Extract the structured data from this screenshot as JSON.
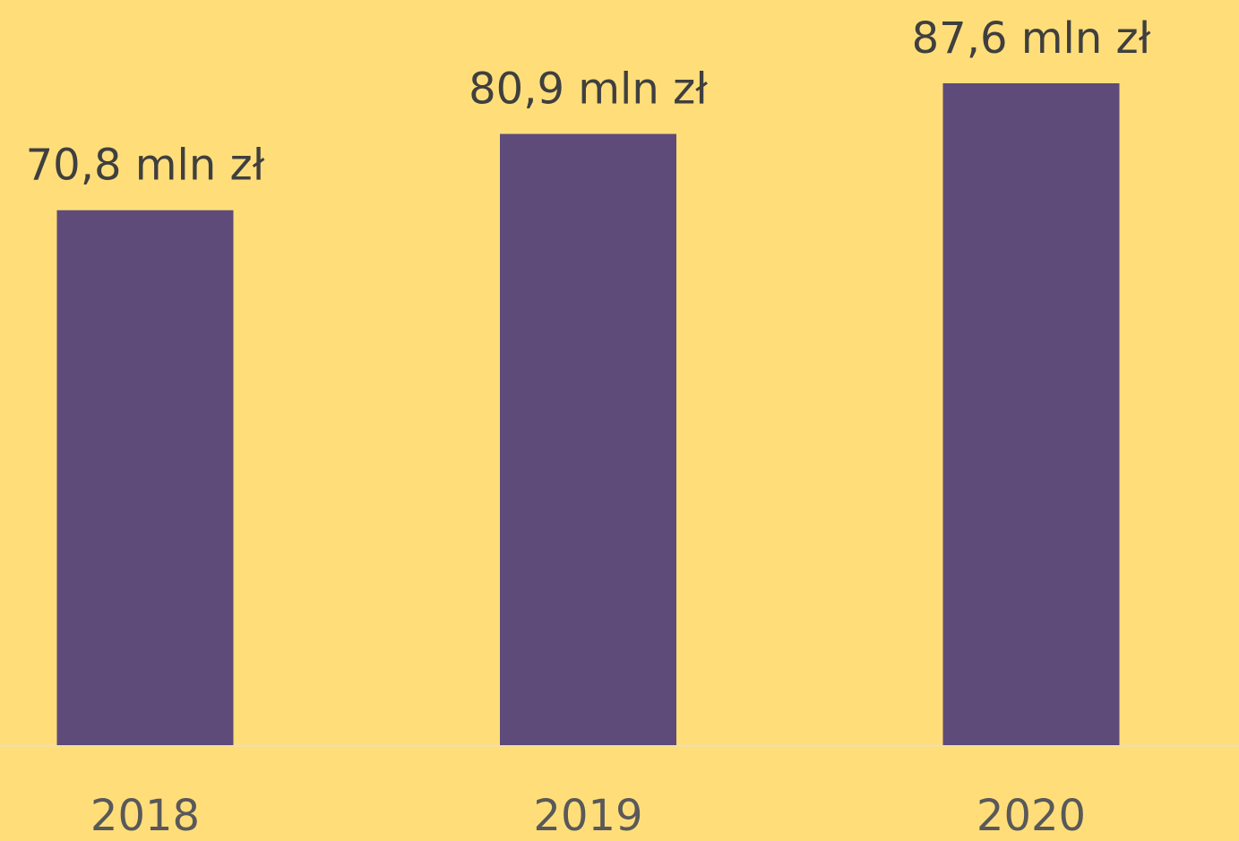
{
  "chart_data": {
    "type": "bar",
    "categories": [
      "2018",
      "2019",
      "2020"
    ],
    "values": [
      70.8,
      80.9,
      87.6
    ],
    "value_labels": [
      "70,8 mln zł",
      "80,9 mln zł",
      "87,6 mln zł"
    ],
    "color": "#5e4b7a"
  }
}
